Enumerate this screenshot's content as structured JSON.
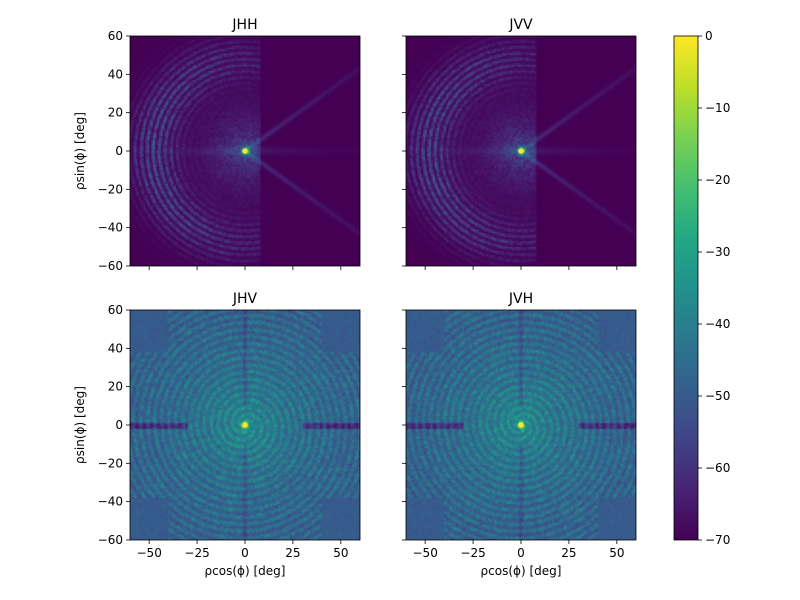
{
  "chart_data": {
    "type": "heatmap",
    "panels": [
      {
        "title": "JHH",
        "ylabel": "ρsin(ϕ) [deg]",
        "xlabel": "",
        "pattern": "co"
      },
      {
        "title": "JVV",
        "ylabel": "",
        "xlabel": "",
        "pattern": "co"
      },
      {
        "title": "JHV",
        "ylabel": "ρsin(ϕ) [deg]",
        "xlabel": "ρcos(ϕ) [deg]",
        "pattern": "cross"
      },
      {
        "title": "JVH",
        "ylabel": "",
        "xlabel": "ρcos(ϕ) [deg]",
        "pattern": "cross"
      }
    ],
    "xlim": [
      -60,
      60
    ],
    "ylim": [
      -60,
      60
    ],
    "xticks": [
      -50,
      -25,
      0,
      25,
      50
    ],
    "yticks": [
      -60,
      -40,
      -20,
      0,
      20,
      40,
      60
    ],
    "colorbar": {
      "range": [
        -70,
        0
      ],
      "ticks": [
        0,
        -10,
        -20,
        -30,
        -40,
        -50,
        -60,
        -70
      ],
      "colormap": "viridis"
    },
    "peak": {
      "x": 0,
      "y": 0,
      "value": 0
    }
  },
  "colors": {
    "viridis_low": "#440154",
    "viridis_mid": "#21918c",
    "viridis_high": "#fde725"
  }
}
